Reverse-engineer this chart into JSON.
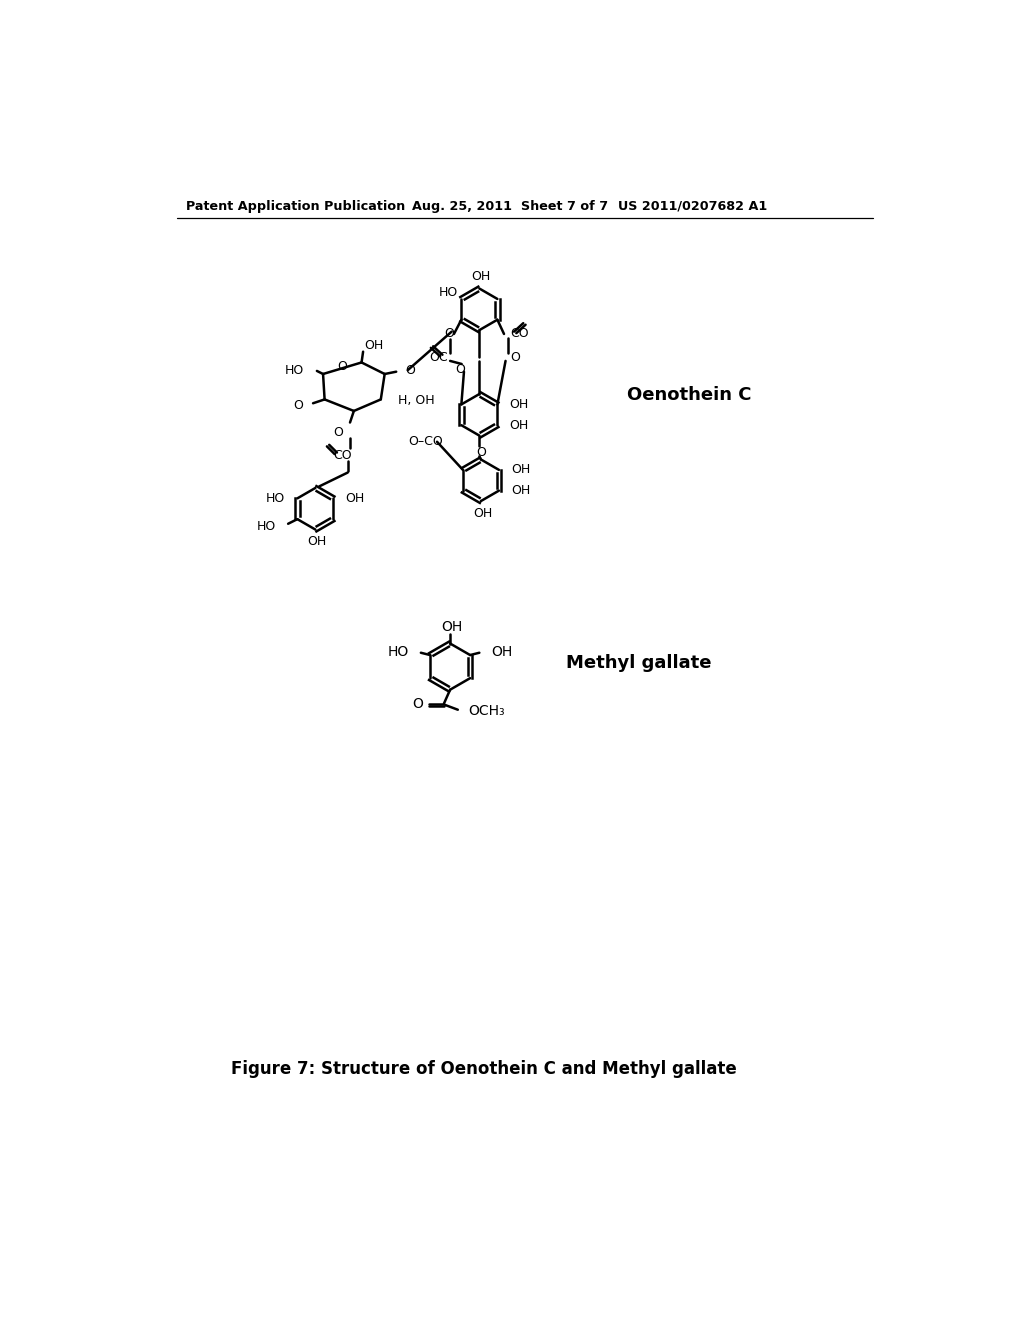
{
  "header_left": "Patent Application Publication",
  "header_mid": "Aug. 25, 2011  Sheet 7 of 7",
  "header_right": "US 2011/0207682 A1",
  "figure_caption": "Figure 7: Structure of Oenothein C and Methyl gallate",
  "label_oenothein": "Oenothein C",
  "label_methyl": "Methyl gallate",
  "bg_color": "#ffffff",
  "text_color": "#000000"
}
